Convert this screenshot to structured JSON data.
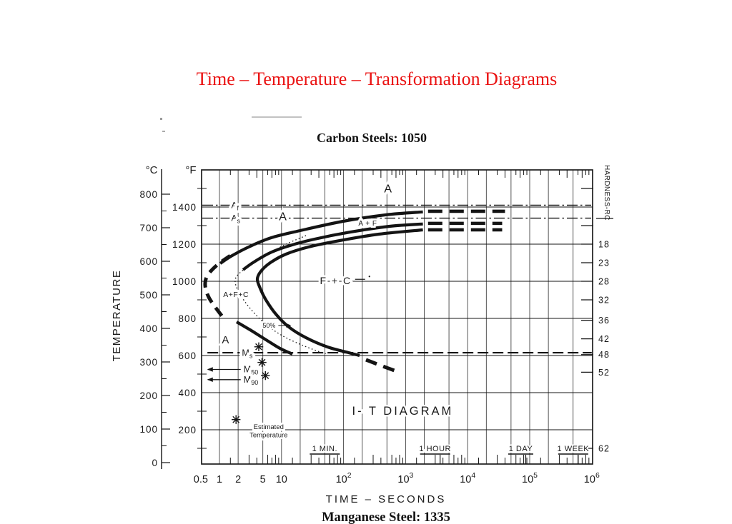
{
  "page": {
    "title": "Time – Temperature – Transformation Diagrams",
    "title_color": "#ea1212",
    "section_top": "Carbon Steels: 1050",
    "section_bottom": "Manganese Steel: 1335"
  },
  "chart_data": {
    "type": "line",
    "title": "I- T  DIAGRAM",
    "xlabel": "TIME  –  SECONDS",
    "ylabel_left": "TEMPERATURE",
    "ylabel_right": "HARDNESS-RC",
    "axis_headers": {
      "c": "°C",
      "f": "°F"
    },
    "x_axis": {
      "scale": "log",
      "min": 0.5,
      "max": 1000000,
      "tick_labels": [
        {
          "v": 0.5,
          "t": "0.5"
        },
        {
          "v": 1,
          "t": "1"
        },
        {
          "v": 2,
          "t": "2"
        },
        {
          "v": 5,
          "t": "5"
        },
        {
          "v": 10,
          "t": "10"
        },
        {
          "v": 100,
          "t": "10",
          "e": "2"
        },
        {
          "v": 1000,
          "t": "10",
          "e": "3"
        },
        {
          "v": 10000,
          "t": "10",
          "e": "4"
        },
        {
          "v": 100000,
          "t": "10",
          "e": "5"
        },
        {
          "v": 1000000,
          "t": "10",
          "e": "6"
        }
      ],
      "gridline_seconds": [
        1,
        2,
        5,
        10,
        20,
        50,
        100,
        200,
        500,
        1000,
        2000,
        5000,
        10000,
        20000,
        50000,
        100000,
        200000,
        500000
      ],
      "minor_tick_mantissas": [
        1.5,
        3,
        4,
        6,
        7,
        8,
        9
      ],
      "minor_tick_decades": [
        1,
        10,
        100,
        1000,
        10000,
        100000
      ]
    },
    "y_axis_C": {
      "unit": "°C",
      "labels": [
        800,
        700,
        600,
        500,
        400,
        300,
        200,
        100,
        0
      ],
      "minor_step": 50
    },
    "y_axis_F": {
      "unit": "°F",
      "labels": [
        1400,
        1200,
        1000,
        800,
        600,
        400,
        200
      ],
      "gridlines_F": [
        200,
        400,
        600,
        800,
        1000,
        1200,
        1400
      ],
      "minor_border_ticks_F": [
        1500,
        1300,
        1100,
        900,
        700,
        500,
        300,
        100
      ]
    },
    "hardness_scale": [
      {
        "label": "",
        "f": 1500
      },
      {
        "label": "",
        "f": 1300
      },
      {
        "label": "18",
        "f": 1200
      },
      {
        "label": "23",
        "f": 1100
      },
      {
        "label": "28",
        "f": 1000
      },
      {
        "label": "32",
        "f": 900
      },
      {
        "label": "36",
        "f": 790
      },
      {
        "label": "42",
        "f": 690
      },
      {
        "label": "48",
        "f": 605
      },
      {
        "label": "52",
        "f": 510
      },
      {
        "label": "62",
        "f": 100
      }
    ],
    "critical_lines": [
      {
        "name": "Af",
        "main": "A",
        "sub": "f",
        "f": 1410,
        "label_s": 1.55
      },
      {
        "name": "As",
        "main": "A",
        "sub": "s",
        "f": 1340,
        "label_s": 1.55
      }
    ],
    "martensite": {
      "ms_line": {
        "main": "M",
        "sub": "s",
        "f": 615,
        "label_s": 2.3,
        "line_from_s": 0.64,
        "line_to_s": 1000000
      },
      "arrow_lines": [
        {
          "main": "M",
          "sub": "50",
          "f": 525,
          "label_s": 2.45,
          "arrow_from_s": 0.65,
          "arrow_to_s": 2.2
        },
        {
          "main": "M",
          "sub": "90",
          "f": 470,
          "label_s": 2.45,
          "arrow_from_s": 0.65,
          "arrow_to_s": 2.2
        }
      ]
    },
    "curves": [
      {
        "name": "start-upper-solid",
        "style": "solid",
        "points": [
          [
            1.03,
            1096
          ],
          [
            1.6,
            1138
          ],
          [
            3.1,
            1188
          ],
          [
            6.9,
            1235
          ],
          [
            20,
            1273
          ],
          [
            98,
            1323
          ],
          [
            480,
            1358
          ],
          [
            1900,
            1374
          ]
        ]
      },
      {
        "name": "start-upper-dashed-ext",
        "style": "dashed_ext",
        "points": [
          [
            2300,
            1377
          ],
          [
            40000,
            1377
          ]
        ]
      },
      {
        "name": "mid-solid",
        "style": "solid",
        "points": [
          [
            2.4,
            1062
          ],
          [
            3.6,
            1104
          ],
          [
            6.6,
            1154
          ],
          [
            13.5,
            1192
          ],
          [
            34,
            1227
          ],
          [
            128,
            1265
          ],
          [
            552,
            1296
          ],
          [
            1900,
            1309
          ]
        ]
      },
      {
        "name": "mid-dashed-ext",
        "style": "dashed_ext",
        "points": [
          [
            2300,
            1312
          ],
          [
            36000,
            1312
          ]
        ]
      },
      {
        "name": "finish-c-curve",
        "style": "solid",
        "points": [
          [
            1900,
            1277
          ],
          [
            371,
            1254
          ],
          [
            86,
            1219
          ],
          [
            27.5,
            1185
          ],
          [
            11.8,
            1146
          ],
          [
            6.6,
            1100
          ],
          [
            4.66,
            1054
          ],
          [
            4.08,
            1012
          ],
          [
            4.54,
            962
          ],
          [
            5.6,
            900
          ],
          [
            8.1,
            823
          ],
          [
            13.1,
            754
          ],
          [
            24.8,
            696
          ],
          [
            55,
            646
          ],
          [
            122,
            615
          ],
          [
            181,
            600
          ]
        ]
      },
      {
        "name": "finish-dashed-ext",
        "style": "dashed_ext",
        "points": [
          [
            2300,
            1277
          ],
          [
            36000,
            1277
          ]
        ]
      },
      {
        "name": "finish-dashed-tail",
        "style": "dashed_tail",
        "points": [
          [
            230,
            577
          ],
          [
            400,
            546
          ],
          [
            760,
            512
          ]
        ]
      },
      {
        "name": "start-nose-estimated",
        "style": "dashed_est",
        "points": [
          [
            1.49,
            1138
          ],
          [
            0.95,
            1092
          ],
          [
            0.69,
            1046
          ],
          [
            0.6,
            1008
          ],
          [
            0.595,
            965
          ],
          [
            0.67,
            915
          ],
          [
            0.85,
            862
          ],
          [
            1.2,
            796
          ]
        ]
      },
      {
        "name": "start-lower-solid",
        "style": "solid",
        "points": [
          [
            1.89,
            781
          ],
          [
            3.13,
            738
          ],
          [
            5.6,
            685
          ],
          [
            9.5,
            638
          ],
          [
            15,
            608
          ]
        ]
      },
      {
        "name": "fifty-percent-dotted",
        "style": "dotted",
        "points": [
          [
            24.8,
            1246
          ],
          [
            11.2,
            1196
          ],
          [
            5.05,
            1131
          ],
          [
            2.81,
            1077
          ],
          [
            1.99,
            1035
          ],
          [
            1.79,
            1000
          ],
          [
            1.99,
            950
          ],
          [
            2.6,
            888
          ],
          [
            3.77,
            823
          ],
          [
            6.07,
            758
          ],
          [
            11.2,
            700
          ],
          [
            22.3,
            654
          ],
          [
            42,
            619
          ],
          [
            55,
            608
          ]
        ]
      }
    ],
    "phase_labels": [
      {
        "text": "A",
        "s": 520,
        "f": 1500,
        "size": 16
      },
      {
        "text": "A",
        "s": 10.5,
        "f": 1350,
        "size": 16
      },
      {
        "text": "A + F",
        "s": 245,
        "f": 1313,
        "size": 10,
        "ls": 0.5
      },
      {
        "text": "F + C",
        "s": 75,
        "f": 1003,
        "size": 14,
        "ls": 2,
        "leader": true
      },
      {
        "text": "A+F+C",
        "s": 1.85,
        "f": 930,
        "size": 10.5,
        "ls": 0.5
      },
      {
        "text": "A",
        "s": 1.25,
        "f": 685,
        "size": 15
      }
    ],
    "fifty_pct_label": {
      "text": "50%",
      "s": 6.3,
      "f": 762
    },
    "estimated_note": {
      "line1": "Estimated",
      "line2": "Temperature",
      "s": 6.2,
      "f1": 215,
      "f2": 172
    },
    "asterisk_markers": [
      [
        4.3,
        647
      ],
      [
        4.85,
        563
      ],
      [
        5.5,
        492
      ],
      [
        1.85,
        255
      ]
    ],
    "time_markers": [
      {
        "label": "1 MIN.",
        "seconds": 60
      },
      {
        "label": "1 HOUR",
        "seconds": 3600
      },
      {
        "label": "1 DAY",
        "seconds": 86400
      },
      {
        "label": "1 WEEK",
        "seconds": 604800
      }
    ]
  }
}
